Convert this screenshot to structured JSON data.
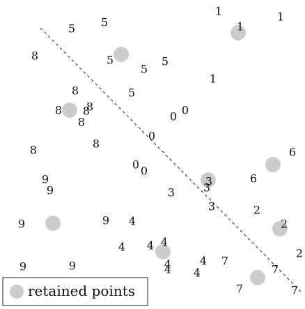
{
  "chart_data": {
    "type": "scatter",
    "title": "",
    "xlabel": "",
    "ylabel": "",
    "xlim": [
      0,
      438
    ],
    "ylim": [
      0,
      443
    ],
    "grid": false,
    "colors": {
      "retained": "#cccccc",
      "label_text": "#111111",
      "dashed_line": "#222222"
    },
    "legend": {
      "position": "bottom-left",
      "entries": [
        {
          "label": "retained points",
          "marker": "circle",
          "color": "#cccccc"
        }
      ]
    },
    "labeled_points": [
      {
        "x": 314,
        "y": 16,
        "label": "1"
      },
      {
        "x": 403,
        "y": 24,
        "label": "1"
      },
      {
        "x": 345,
        "y": 38,
        "label": "1"
      },
      {
        "x": 306,
        "y": 113,
        "label": "1"
      },
      {
        "x": 103,
        "y": 41,
        "label": "5"
      },
      {
        "x": 150,
        "y": 32,
        "label": "5"
      },
      {
        "x": 158,
        "y": 86,
        "label": "5"
      },
      {
        "x": 207,
        "y": 99,
        "label": "5"
      },
      {
        "x": 237,
        "y": 88,
        "label": "5"
      },
      {
        "x": 189,
        "y": 133,
        "label": "5"
      },
      {
        "x": 50,
        "y": 80,
        "label": "8"
      },
      {
        "x": 108,
        "y": 130,
        "label": "8"
      },
      {
        "x": 84,
        "y": 158,
        "label": "8"
      },
      {
        "x": 124,
        "y": 159,
        "label": "8"
      },
      {
        "x": 129,
        "y": 153,
        "label": "8"
      },
      {
        "x": 117,
        "y": 175,
        "label": "8"
      },
      {
        "x": 138,
        "y": 206,
        "label": "8"
      },
      {
        "x": 48,
        "y": 215,
        "label": "8"
      },
      {
        "x": 249,
        "y": 167,
        "label": "0"
      },
      {
        "x": 266,
        "y": 158,
        "label": "0"
      },
      {
        "x": 218,
        "y": 195,
        "label": "0"
      },
      {
        "x": 195,
        "y": 236,
        "label": "0"
      },
      {
        "x": 207,
        "y": 245,
        "label": "0"
      },
      {
        "x": 420,
        "y": 218,
        "label": "6"
      },
      {
        "x": 364,
        "y": 256,
        "label": "6"
      },
      {
        "x": 65,
        "y": 257,
        "label": "9"
      },
      {
        "x": 72,
        "y": 273,
        "label": "9"
      },
      {
        "x": 31,
        "y": 321,
        "label": "9"
      },
      {
        "x": 152,
        "y": 316,
        "label": "9"
      },
      {
        "x": 33,
        "y": 382,
        "label": "9"
      },
      {
        "x": 104,
        "y": 381,
        "label": "9"
      },
      {
        "x": 300,
        "y": 260,
        "label": "3"
      },
      {
        "x": 297,
        "y": 269,
        "label": "3"
      },
      {
        "x": 246,
        "y": 276,
        "label": "3"
      },
      {
        "x": 304,
        "y": 296,
        "label": "3"
      },
      {
        "x": 369,
        "y": 301,
        "label": "2"
      },
      {
        "x": 408,
        "y": 321,
        "label": "2"
      },
      {
        "x": 430,
        "y": 363,
        "label": "2"
      },
      {
        "x": 190,
        "y": 317,
        "label": "4"
      },
      {
        "x": 175,
        "y": 354,
        "label": "4"
      },
      {
        "x": 216,
        "y": 352,
        "label": "4"
      },
      {
        "x": 236,
        "y": 347,
        "label": "4"
      },
      {
        "x": 241,
        "y": 379,
        "label": "4"
      },
      {
        "x": 241,
        "y": 386,
        "label": "4"
      },
      {
        "x": 292,
        "y": 374,
        "label": "4"
      },
      {
        "x": 283,
        "y": 391,
        "label": "4"
      },
      {
        "x": 323,
        "y": 374,
        "label": "7"
      },
      {
        "x": 395,
        "y": 386,
        "label": "7"
      },
      {
        "x": 344,
        "y": 414,
        "label": "7"
      },
      {
        "x": 423,
        "y": 416,
        "label": "7"
      }
    ],
    "retained_points": [
      {
        "x": 342,
        "y": 47
      },
      {
        "x": 174,
        "y": 78
      },
      {
        "x": 100,
        "y": 158
      },
      {
        "x": 392,
        "y": 236
      },
      {
        "x": 299,
        "y": 258
      },
      {
        "x": 76,
        "y": 320
      },
      {
        "x": 402,
        "y": 328
      },
      {
        "x": 234,
        "y": 361
      },
      {
        "x": 370,
        "y": 398
      }
    ],
    "dashed_line": {
      "x": [
        58,
        434
      ],
      "y": [
        40,
        420
      ]
    }
  }
}
